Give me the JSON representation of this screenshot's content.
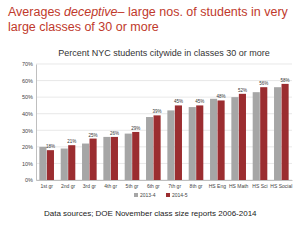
{
  "heading": [
    "Averages ",
    "deceptive",
    "– large nos. of students in very large classes of 30 or more"
  ],
  "chart_data": {
    "type": "bar",
    "title": "Percent NYC students citywide in classes 30 or more",
    "categories": [
      "1st gr",
      "2nd gr",
      "3rd gr",
      "4th gr",
      "5th gr",
      "6th gr",
      "7th gr",
      "8th gr",
      "HS Eng",
      "HS Math",
      "HS Sci",
      "HS Social"
    ],
    "series": [
      {
        "name": "2013-4",
        "color": "#a6a6a6",
        "values": [
          20,
          19,
          22,
          26,
          28,
          38,
          42,
          44,
          49,
          50,
          53,
          56
        ]
      },
      {
        "name": "2014-5",
        "color": "#9b2d30",
        "values": [
          18,
          21,
          25,
          26,
          29,
          39,
          45,
          45,
          48,
          52,
          56,
          58
        ],
        "value_labels": [
          "18%",
          "21%",
          "25%",
          "26%",
          "29%",
          "39%",
          "45%",
          "45%",
          "48%",
          "52%",
          "56%",
          "58%"
        ]
      }
    ],
    "ylim": [
      0,
      70
    ],
    "yticks": [
      {
        "value": 0,
        "label": "0%"
      },
      {
        "value": 10,
        "label": "10%"
      },
      {
        "value": 20,
        "label": "20%"
      },
      {
        "value": 30,
        "label": "30%"
      },
      {
        "value": 40,
        "label": "40%"
      },
      {
        "value": 50,
        "label": "50%"
      },
      {
        "value": 60,
        "label": "60%"
      },
      {
        "value": 70,
        "label": "70%"
      }
    ],
    "grid": true,
    "legend": "bottom",
    "data_labels": true,
    "annotations": [
      "Data sources; DOE November class size reports 2006-2014"
    ]
  }
}
